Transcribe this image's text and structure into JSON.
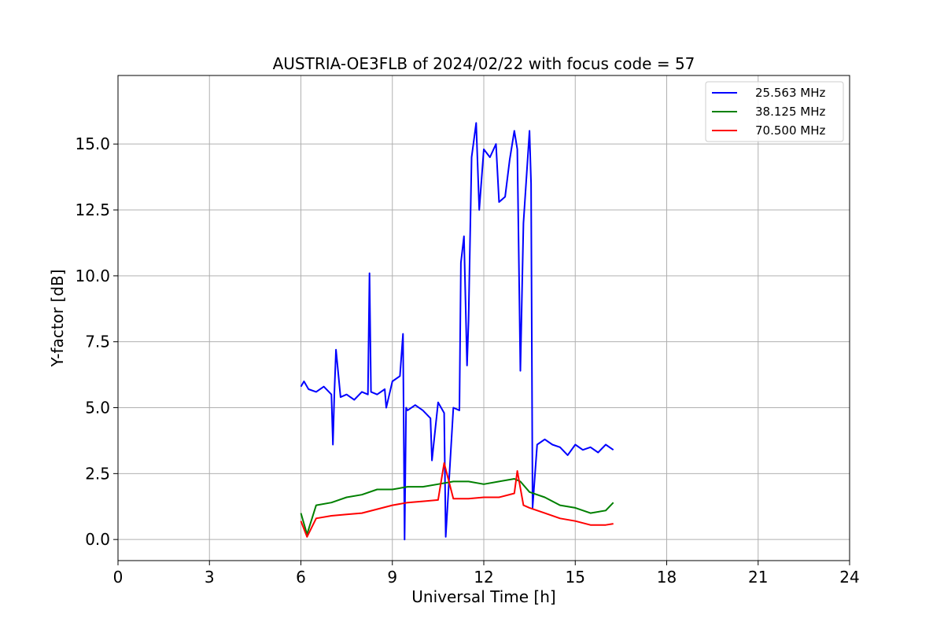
{
  "chart_data": {
    "type": "line",
    "title": "AUSTRIA-OE3FLB of 2024/02/22 with focus code = 57",
    "xlabel": "Universal Time [h]",
    "ylabel": "Y-factor [dB]",
    "xlim": [
      0,
      24
    ],
    "ylim": [
      -0.8,
      17.6
    ],
    "xticks": [
      0,
      3,
      6,
      9,
      12,
      15,
      18,
      21,
      24
    ],
    "xtick_labels": [
      "0",
      "3",
      "6",
      "9",
      "12",
      "15",
      "18",
      "21",
      "24"
    ],
    "yticks": [
      0,
      2.5,
      5,
      7.5,
      10,
      12.5,
      15
    ],
    "ytick_labels": [
      "0.0",
      "2.5",
      "5.0",
      "7.5",
      "10.0",
      "12.5",
      "15.0"
    ],
    "grid": true,
    "legend_position": "top-right",
    "series": [
      {
        "name": "25.563 MHz",
        "color": "#0000ff",
        "x": [
          6.0,
          6.1,
          6.25,
          6.5,
          6.75,
          7.0,
          7.05,
          7.1,
          7.15,
          7.3,
          7.5,
          7.75,
          8.0,
          8.2,
          8.25,
          8.3,
          8.5,
          8.75,
          8.8,
          9.0,
          9.25,
          9.35,
          9.4,
          9.45,
          9.5,
          9.75,
          10.0,
          10.25,
          10.3,
          10.5,
          10.7,
          10.75,
          11.0,
          11.2,
          11.25,
          11.35,
          11.45,
          11.5,
          11.6,
          11.75,
          11.85,
          12.0,
          12.2,
          12.4,
          12.5,
          12.7,
          12.85,
          13.0,
          13.1,
          13.2,
          13.3,
          13.5,
          13.55,
          13.6,
          13.75,
          14.0,
          14.25,
          14.5,
          14.75,
          15.0,
          15.25,
          15.5,
          15.75,
          16.0,
          16.25
        ],
        "y": [
          5.8,
          6.0,
          5.7,
          5.6,
          5.8,
          5.5,
          3.6,
          5.6,
          7.2,
          5.4,
          5.5,
          5.3,
          5.6,
          5.5,
          10.1,
          5.6,
          5.5,
          5.7,
          5.0,
          6.0,
          6.2,
          7.8,
          0.0,
          5.0,
          4.9,
          5.1,
          4.9,
          4.6,
          3.0,
          5.2,
          4.8,
          0.1,
          5.0,
          4.9,
          10.5,
          11.5,
          6.6,
          8.3,
          14.5,
          15.8,
          12.5,
          14.8,
          14.5,
          15.0,
          12.8,
          13.0,
          14.4,
          15.5,
          14.8,
          6.4,
          12.0,
          15.5,
          13.5,
          1.2,
          3.6,
          3.8,
          3.6,
          3.5,
          3.2,
          3.6,
          3.4,
          3.5,
          3.3,
          3.6,
          3.4
        ]
      },
      {
        "name": "38.125 MHz",
        "color": "#008000",
        "x": [
          6.0,
          6.2,
          6.5,
          7.0,
          7.5,
          8.0,
          8.5,
          9.0,
          9.5,
          10.0,
          10.5,
          11.0,
          11.5,
          12.0,
          12.5,
          13.0,
          13.2,
          13.5,
          14.0,
          14.5,
          15.0,
          15.5,
          16.0,
          16.25
        ],
        "y": [
          1.0,
          0.2,
          1.3,
          1.4,
          1.6,
          1.7,
          1.9,
          1.9,
          2.0,
          2.0,
          2.1,
          2.2,
          2.2,
          2.1,
          2.2,
          2.3,
          2.2,
          1.8,
          1.6,
          1.3,
          1.2,
          1.0,
          1.1,
          1.4
        ]
      },
      {
        "name": "70.500 MHz",
        "color": "#ff0000",
        "x": [
          6.0,
          6.2,
          6.5,
          7.0,
          7.5,
          8.0,
          8.5,
          9.0,
          9.5,
          10.0,
          10.5,
          10.7,
          11.0,
          11.5,
          12.0,
          12.5,
          13.0,
          13.1,
          13.3,
          13.5,
          14.0,
          14.5,
          15.0,
          15.5,
          16.0,
          16.25
        ],
        "y": [
          0.7,
          0.1,
          0.8,
          0.9,
          0.95,
          1.0,
          1.15,
          1.3,
          1.4,
          1.45,
          1.5,
          2.9,
          1.55,
          1.55,
          1.6,
          1.6,
          1.75,
          2.6,
          1.3,
          1.2,
          1.0,
          0.8,
          0.7,
          0.55,
          0.55,
          0.6
        ]
      }
    ]
  }
}
